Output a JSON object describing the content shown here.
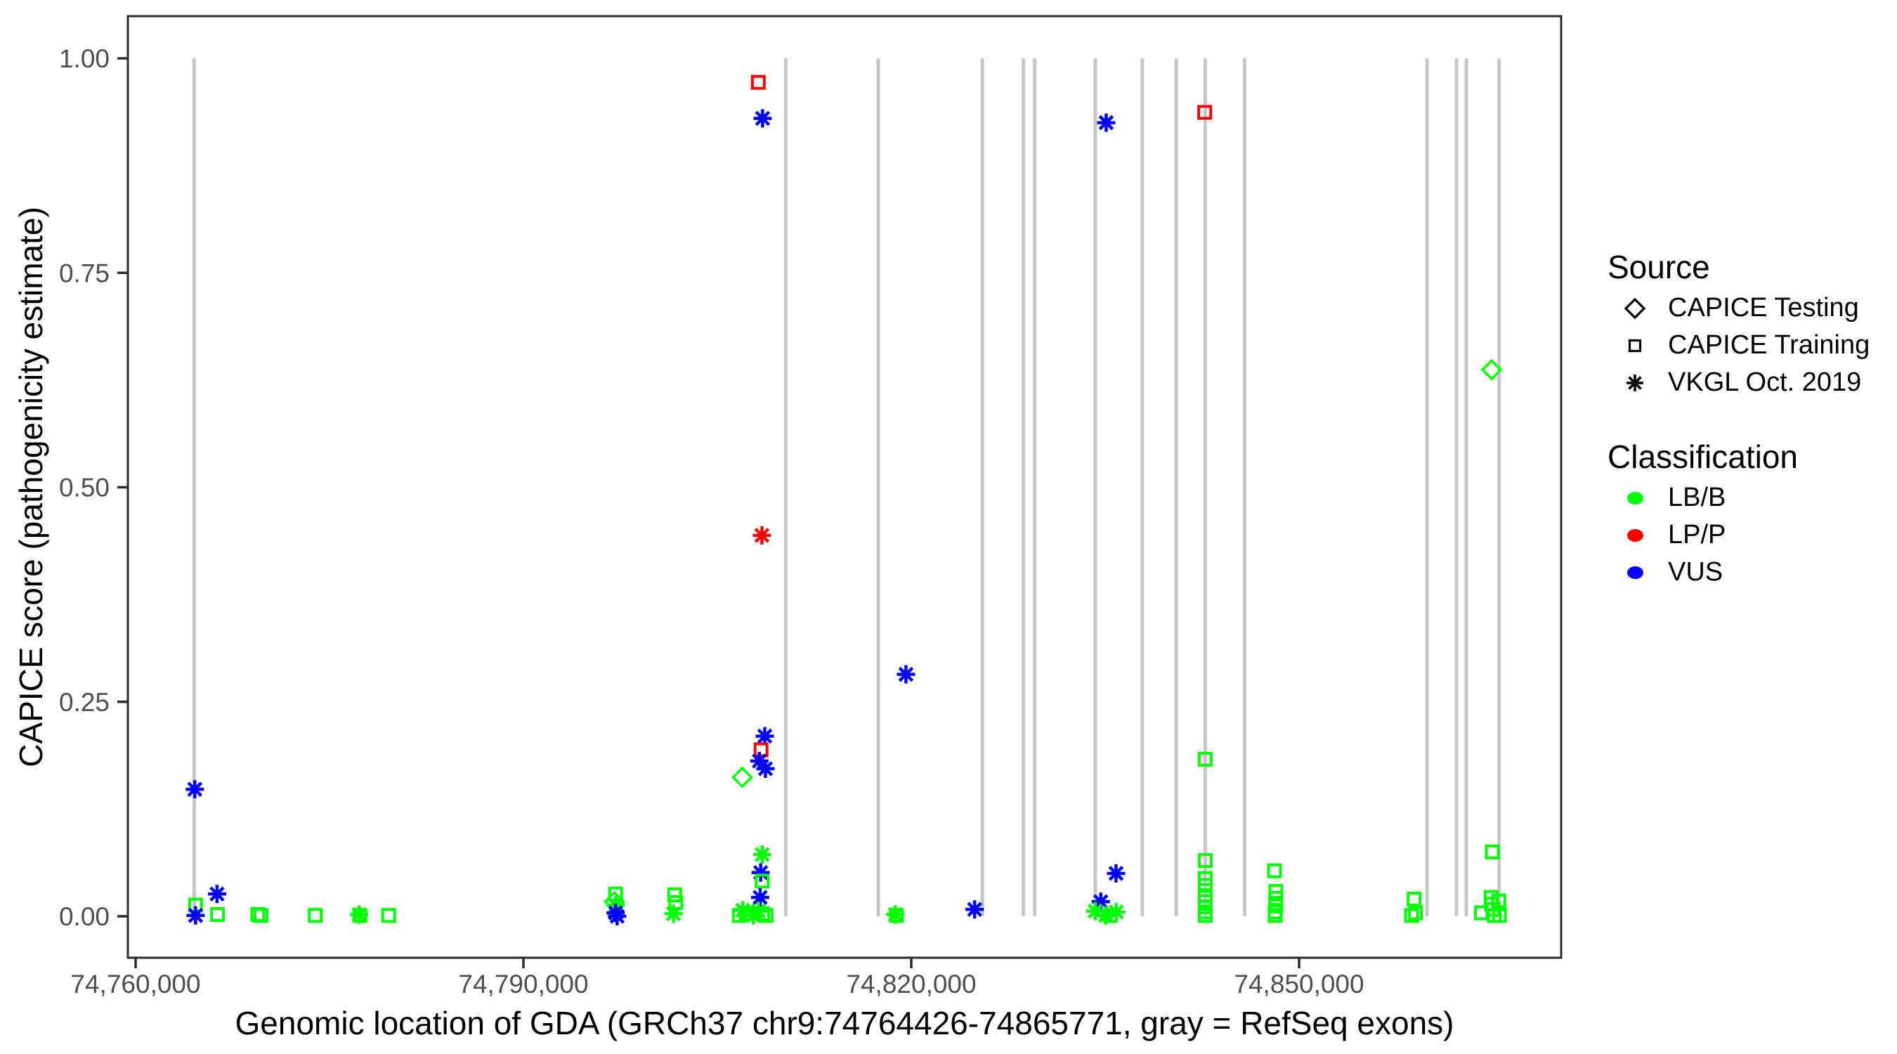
{
  "chart_data": {
    "type": "scatter",
    "title": "",
    "xlabel": "Genomic location of GDA (GRCh37 chr9:74764426-74865771, gray = RefSeq exons)",
    "ylabel": "CAPICE score (pathogenicity estimate)",
    "x_ticks": [
      {
        "v": 74760000,
        "label": "74,760,000"
      },
      {
        "v": 74790000,
        "label": "74,790,000"
      },
      {
        "v": 74820000,
        "label": "74,820,000"
      },
      {
        "v": 74850000,
        "label": "74,850,000"
      }
    ],
    "y_ticks": [
      {
        "v": 0.0,
        "label": "0.00"
      },
      {
        "v": 0.25,
        "label": "0.25"
      },
      {
        "v": 0.5,
        "label": "0.50"
      },
      {
        "v": 0.75,
        "label": "0.75"
      },
      {
        "v": 1.0,
        "label": "1.00"
      }
    ],
    "xlim": [
      74759400,
      74870300
    ],
    "ylim": [
      0,
      1
    ],
    "grid": false,
    "legend_position": "right",
    "exon_color": "#c6c6c6",
    "class_colors": {
      "LB/B": "#00ff00",
      "LP/P": "#ff0000",
      "VUS": "#0000ff"
    },
    "exons": [
      74764530,
      74810290,
      74817450,
      74825500,
      74828680,
      74829550,
      74834230,
      74837870,
      74840500,
      74842740,
      74845790,
      74859900,
      74862180,
      74862940,
      74865470
    ],
    "points_format": [
      "genomic_position_bp",
      "capice_score",
      "source",
      "classification"
    ],
    "points": [
      [
        74764580,
        0.148,
        "vkgl",
        "VUS"
      ],
      [
        74764640,
        0.013,
        "training",
        "LB/B"
      ],
      [
        74764640,
        0.001,
        "vkgl",
        "VUS"
      ],
      [
        74766300,
        0.026,
        "vkgl",
        "VUS"
      ],
      [
        74766340,
        0.002,
        "training",
        "LB/B"
      ],
      [
        74769450,
        0.002,
        "training",
        "LB/B"
      ],
      [
        74769700,
        0.001,
        "training",
        "LB/B"
      ],
      [
        74773900,
        0.001,
        "training",
        "LB/B"
      ],
      [
        74777290,
        0.002,
        "vkgl",
        "LB/B"
      ],
      [
        74777350,
        0.001,
        "training",
        "LB/B"
      ],
      [
        74779580,
        0.001,
        "training",
        "LB/B"
      ],
      [
        74797130,
        0.026,
        "training",
        "LB/B"
      ],
      [
        74797040,
        0.017,
        "testing",
        "LB/B"
      ],
      [
        74797130,
        0.013,
        "vkgl",
        "LB/B"
      ],
      [
        74797130,
        0.004,
        "vkgl",
        "VUS"
      ],
      [
        74797250,
        0.0,
        "vkgl",
        "VUS"
      ],
      [
        74801700,
        0.025,
        "training",
        "LB/B"
      ],
      [
        74801790,
        0.016,
        "training",
        "LB/B"
      ],
      [
        74801610,
        0.003,
        "vkgl",
        "LB/B"
      ],
      [
        74808170,
        0.972,
        "training",
        "LP/P"
      ],
      [
        74808500,
        0.93,
        "vkgl",
        "VUS"
      ],
      [
        74808450,
        0.444,
        "vkgl",
        "LP/P"
      ],
      [
        74808670,
        0.21,
        "vkgl",
        "VUS"
      ],
      [
        74808380,
        0.194,
        "training",
        "LP/P"
      ],
      [
        74808250,
        0.181,
        "vkgl",
        "VUS"
      ],
      [
        74808720,
        0.172,
        "vkgl",
        "VUS"
      ],
      [
        74806930,
        0.162,
        "testing",
        "LB/B"
      ],
      [
        74808470,
        0.072,
        "vkgl",
        "LB/B"
      ],
      [
        74808350,
        0.051,
        "vkgl",
        "VUS"
      ],
      [
        74808470,
        0.041,
        "training",
        "LB/B"
      ],
      [
        74808310,
        0.022,
        "vkgl",
        "VUS"
      ],
      [
        74806970,
        0.007,
        "vkgl",
        "LB/B"
      ],
      [
        74806700,
        0.001,
        "training",
        "LB/B"
      ],
      [
        74807240,
        0.003,
        "training",
        "LB/B"
      ],
      [
        74807790,
        0.001,
        "vkgl",
        "LB/B"
      ],
      [
        74808170,
        0.006,
        "vkgl",
        "LB/B"
      ],
      [
        74808500,
        0.003,
        "training",
        "LB/B"
      ],
      [
        74808770,
        0.001,
        "training",
        "LB/B"
      ],
      [
        74819590,
        0.282,
        "vkgl",
        "VUS"
      ],
      [
        74818770,
        0.002,
        "vkgl",
        "LB/B"
      ],
      [
        74818850,
        0.001,
        "training",
        "LB/B"
      ],
      [
        74824900,
        0.008,
        "vkgl",
        "VUS"
      ],
      [
        74835080,
        0.925,
        "vkgl",
        "VUS"
      ],
      [
        74842700,
        0.937,
        "training",
        "LP/P"
      ],
      [
        74835840,
        0.05,
        "vkgl",
        "VUS"
      ],
      [
        74834660,
        0.017,
        "vkgl",
        "VUS"
      ],
      [
        74834230,
        0.006,
        "vkgl",
        "LB/B"
      ],
      [
        74835050,
        0.001,
        "vkgl",
        "LB/B"
      ],
      [
        74835860,
        0.005,
        "vkgl",
        "LB/B"
      ],
      [
        74835400,
        0.001,
        "training",
        "LB/B"
      ],
      [
        74842740,
        0.183,
        "training",
        "LB/B"
      ],
      [
        74842740,
        0.065,
        "training",
        "LB/B"
      ],
      [
        74842740,
        0.044,
        "training",
        "LB/B"
      ],
      [
        74842740,
        0.036,
        "training",
        "LB/B"
      ],
      [
        74842740,
        0.024,
        "training",
        "LB/B"
      ],
      [
        74842740,
        0.017,
        "training",
        "LB/B"
      ],
      [
        74842740,
        0.011,
        "training",
        "LB/B"
      ],
      [
        74842740,
        0.005,
        "training",
        "LB/B"
      ],
      [
        74842740,
        0.001,
        "training",
        "LB/B"
      ],
      [
        74848100,
        0.053,
        "training",
        "LB/B"
      ],
      [
        74848200,
        0.029,
        "training",
        "LB/B"
      ],
      [
        74848200,
        0.021,
        "training",
        "LB/B"
      ],
      [
        74848200,
        0.012,
        "training",
        "LB/B"
      ],
      [
        74848150,
        0.005,
        "training",
        "LB/B"
      ],
      [
        74848150,
        0.001,
        "training",
        "LB/B"
      ],
      [
        74858900,
        0.02,
        "training",
        "LB/B"
      ],
      [
        74859000,
        0.004,
        "training",
        "LB/B"
      ],
      [
        74858700,
        0.001,
        "training",
        "LB/B"
      ],
      [
        74864900,
        0.637,
        "testing",
        "LB/B"
      ],
      [
        74864950,
        0.075,
        "training",
        "LB/B"
      ],
      [
        74864100,
        0.004,
        "training",
        "LB/B"
      ],
      [
        74864850,
        0.022,
        "training",
        "LB/B"
      ],
      [
        74864900,
        0.014,
        "training",
        "LB/B"
      ],
      [
        74865000,
        0.008,
        "training",
        "LB/B"
      ],
      [
        74865100,
        0.001,
        "training",
        "LB/B"
      ],
      [
        74865450,
        0.018,
        "training",
        "LB/B"
      ],
      [
        74865500,
        0.001,
        "training",
        "LB/B"
      ]
    ]
  },
  "legend": {
    "source": {
      "title": "Source",
      "items": [
        {
          "symbol": "diamond-icon",
          "label": "CAPICE Testing"
        },
        {
          "symbol": "square-icon",
          "label": "CAPICE Training"
        },
        {
          "symbol": "asterisk-icon",
          "label": "VKGL Oct. 2019"
        }
      ]
    },
    "classification": {
      "title": "Classification",
      "items": [
        {
          "color": "#00ff00",
          "label": "LB/B"
        },
        {
          "color": "#ff0000",
          "label": "LP/P"
        },
        {
          "color": "#0000ff",
          "label": "VUS"
        }
      ]
    }
  }
}
